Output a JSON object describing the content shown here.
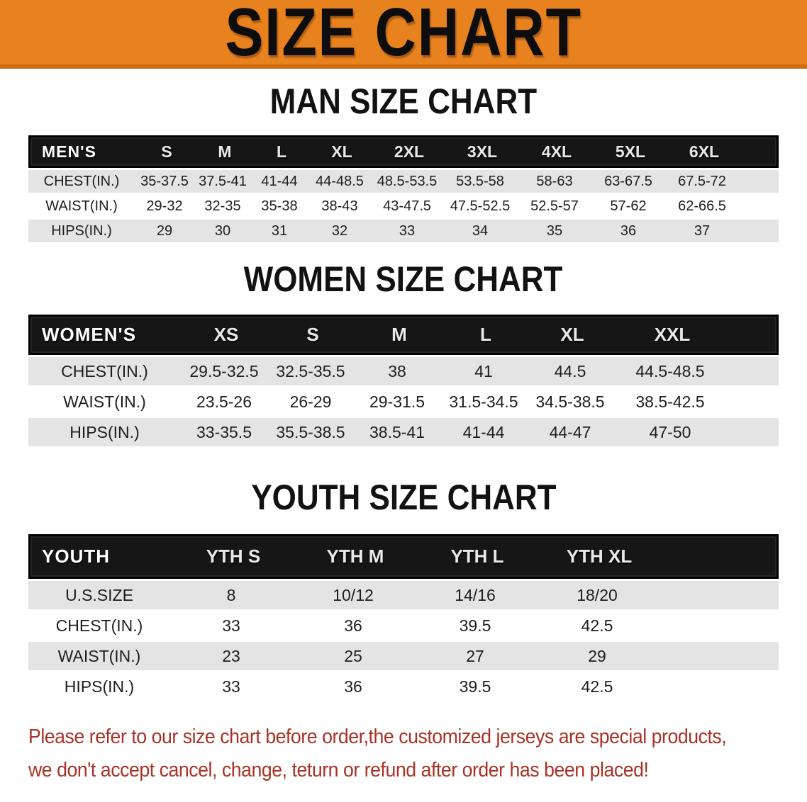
{
  "banner": {
    "title": "SIZE CHART"
  },
  "colors": {
    "banner_bg": "#e7821e",
    "banner_edge": "#cc6c10",
    "header_band": "#161616",
    "row_gray": "#e4e4e4",
    "footer_red": "#a93226"
  },
  "sections": {
    "men": {
      "heading": "MAN SIZE CHART",
      "corner_label": "MEN'S",
      "sizes": [
        "S",
        "M",
        "L",
        "XL",
        "2XL",
        "3XL",
        "4XL",
        "5XL",
        "6XL"
      ],
      "rows": [
        {
          "label": "CHEST(IN.)",
          "values": [
            "35-37.5",
            "37.5-41",
            "41-44",
            "44-48.5",
            "48.5-53.5",
            "53.5-58",
            "58-63",
            "63-67.5",
            "67.5-72"
          ]
        },
        {
          "label": "WAIST(IN.)",
          "values": [
            "29-32",
            "32-35",
            "35-38",
            "38-43",
            "43-47.5",
            "47.5-52.5",
            "52.5-57",
            "57-62",
            "62-66.5"
          ]
        },
        {
          "label": "HIPS(IN.)",
          "values": [
            "29",
            "30",
            "31",
            "32",
            "33",
            "34",
            "35",
            "36",
            "37"
          ]
        }
      ]
    },
    "women": {
      "heading": "WOMEN SIZE CHART",
      "corner_label": "WOMEN'S",
      "sizes": [
        "XS",
        "S",
        "M",
        "L",
        "XL",
        "XXL"
      ],
      "rows": [
        {
          "label": "CHEST(IN.)",
          "values": [
            "29.5-32.5",
            "32.5-35.5",
            "38",
            "41",
            "44.5",
            "44.5-48.5"
          ]
        },
        {
          "label": "WAIST(IN.)",
          "values": [
            "23.5-26",
            "26-29",
            "29-31.5",
            "31.5-34.5",
            "34.5-38.5",
            "38.5-42.5"
          ]
        },
        {
          "label": "HIPS(IN.)",
          "values": [
            "33-35.5",
            "35.5-38.5",
            "38.5-41",
            "41-44",
            "44-47",
            "47-50"
          ]
        }
      ]
    },
    "youth": {
      "heading": "YOUTH SIZE CHART",
      "corner_label": "YOUTH",
      "sizes": [
        "YTH S",
        "YTH M",
        "YTH L",
        "YTH XL"
      ],
      "rows": [
        {
          "label": "U.S.SIZE",
          "values": [
            "8",
            "10/12",
            "14/16",
            "18/20"
          ]
        },
        {
          "label": "CHEST(IN.)",
          "values": [
            "33",
            "36",
            "39.5",
            "42.5"
          ]
        },
        {
          "label": "WAIST(IN.)",
          "values": [
            "23",
            "25",
            "27",
            "29"
          ]
        },
        {
          "label": "HIPS(IN.)",
          "values": [
            "33",
            "36",
            "39.5",
            "42.5"
          ]
        }
      ]
    }
  },
  "footer": {
    "line1": "Please refer to our size chart before order,the customized jerseys are special products,",
    "line2": "we don't accept cancel, change, teturn or refund after order has been placed!"
  }
}
